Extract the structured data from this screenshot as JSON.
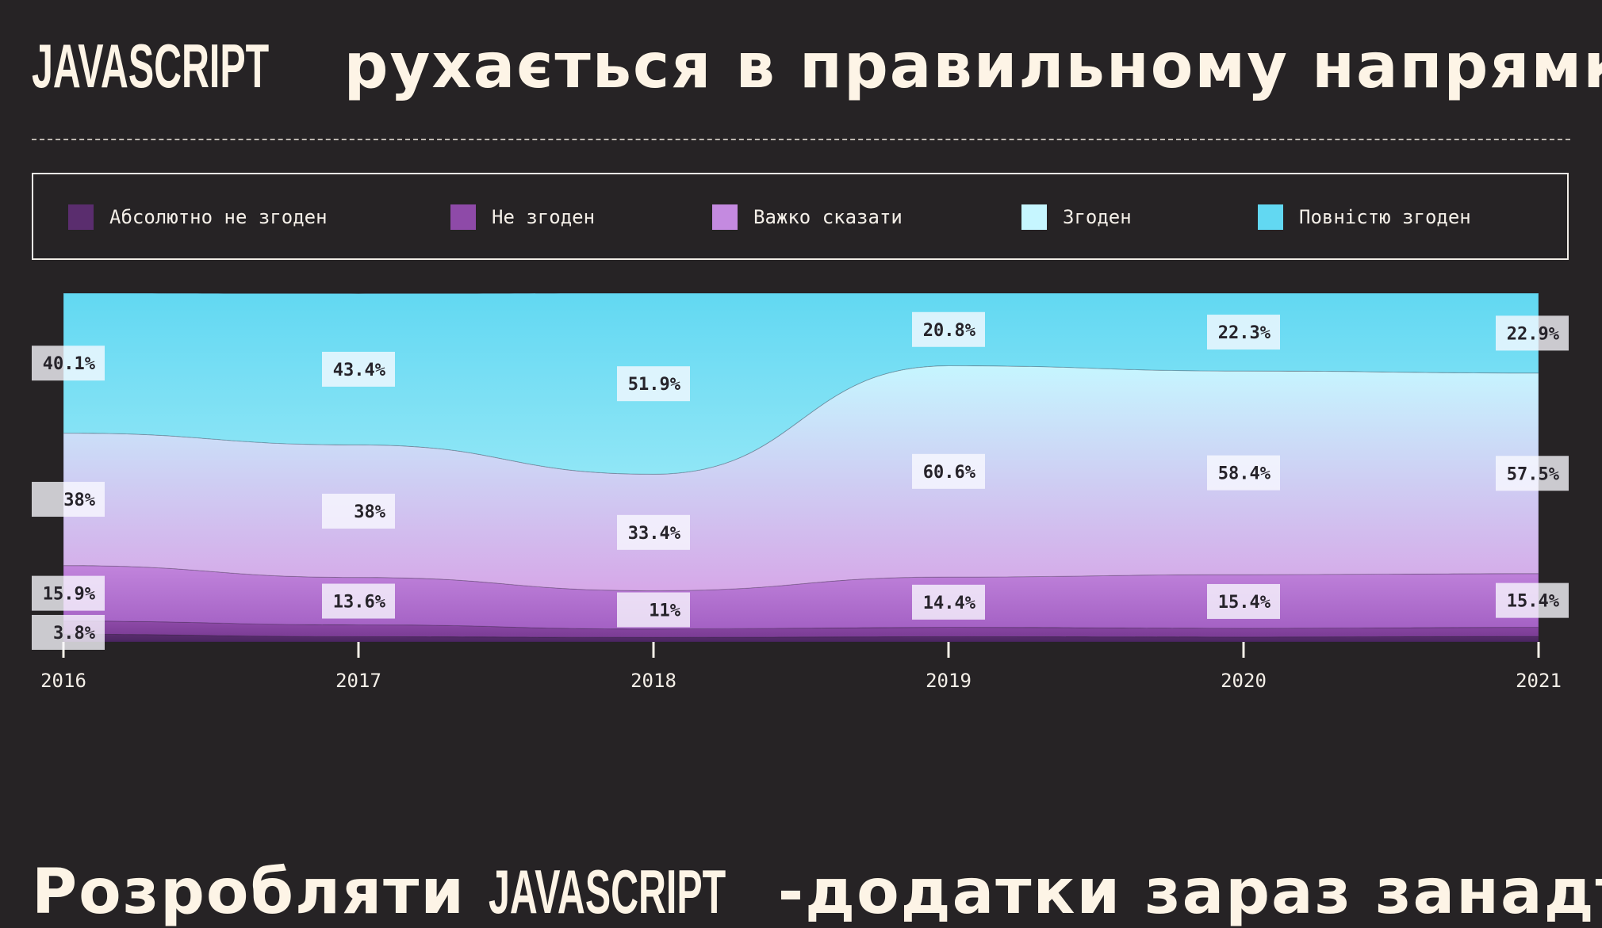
{
  "title": {
    "brand": "JAVASCRIPT",
    "rest": " рухається в правильному напрямку"
  },
  "next_title": {
    "prefix": "Розробляти ",
    "brand": "JAVASCRIPT",
    "rest": "-додатки зараз занадто"
  },
  "chart_data": {
    "type": "area",
    "stacked": true,
    "normalized": true,
    "categories": [
      "2016",
      "2017",
      "2018",
      "2019",
      "2020",
      "2021"
    ],
    "series": [
      {
        "name": "Абсолютно не згоден",
        "color": "#5a2d6e",
        "values": [
          2.2,
          1.5,
          1.3,
          1.5,
          1.4,
          1.6
        ]
      },
      {
        "name": "Не згоден",
        "color": "#8e4aa8",
        "values": [
          3.8,
          3.4,
          2.4,
          2.7,
          2.5,
          2.6
        ]
      },
      {
        "name": "Важко сказати",
        "color": "#c48ae0",
        "values": [
          15.9,
          13.6,
          11,
          14.4,
          15.4,
          15.4
        ]
      },
      {
        "name": "Згоден",
        "color": "#c6f6ff",
        "values": [
          38,
          38,
          33.4,
          60.6,
          58.4,
          57.5
        ]
      },
      {
        "name": "Повністю згоден",
        "color": "#62d8f2",
        "values": [
          40.1,
          43.4,
          51.9,
          20.8,
          22.3,
          22.9
        ]
      }
    ],
    "data_labels": [
      {
        "series": 4,
        "text": [
          "40.1%",
          "43.4%",
          "51.9%",
          "20.8%",
          "22.3%",
          "22.9%"
        ]
      },
      {
        "series": 3,
        "text": [
          "38%",
          "38%",
          "33.4%",
          "60.6%",
          "58.4%",
          "57.5%"
        ]
      },
      {
        "series": 2,
        "text": [
          "15.9%",
          "13.6%",
          "11%",
          "14.4%",
          "15.4%",
          "15.4%"
        ]
      },
      {
        "series": 1,
        "text": [
          "3.8%",
          "",
          "",
          "",
          "",
          ""
        ]
      }
    ],
    "ylim": [
      0,
      100
    ],
    "grid": false,
    "legend_position": "top"
  }
}
